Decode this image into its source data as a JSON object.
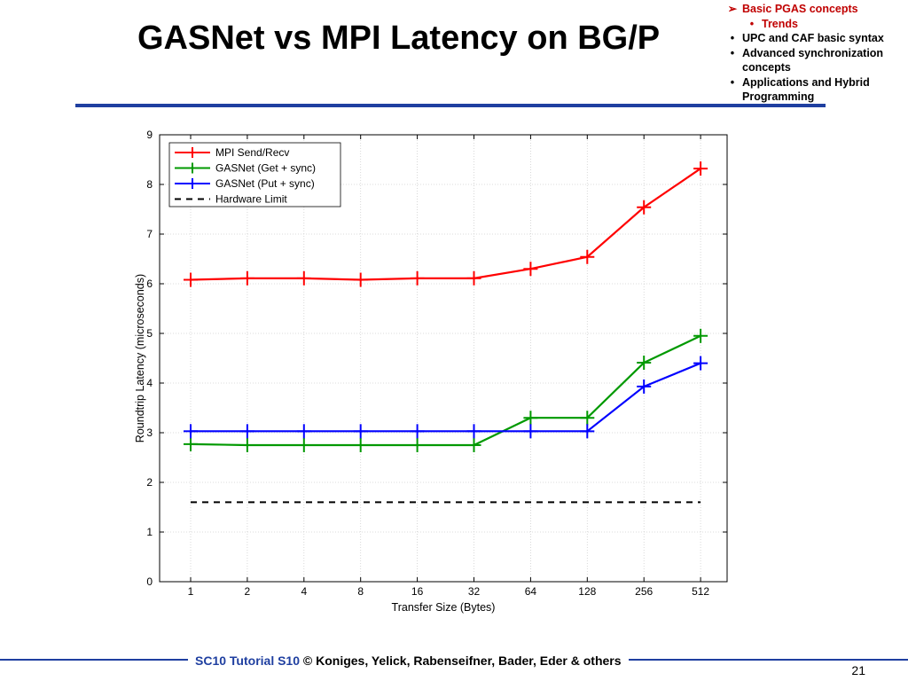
{
  "slide": {
    "title": "GASNet vs MPI Latency on BG/P",
    "page_number": "21"
  },
  "outline": {
    "items": [
      {
        "marker": "➢",
        "label": "Basic PGAS concepts",
        "highlight": true,
        "subitems": [
          {
            "marker": "•",
            "label": "Trends",
            "highlight": true
          }
        ]
      },
      {
        "marker": "•",
        "label": "UPC and CAF basic syntax",
        "highlight": false
      },
      {
        "marker": "•",
        "label": "Advanced synchronization concepts",
        "highlight": false
      },
      {
        "marker": "•",
        "label": "Applications and Hybrid Programming",
        "highlight": false
      }
    ]
  },
  "footer": {
    "tutorial": "SC10 Tutorial S10",
    "authors": "© Koniges, Yelick, Rabenseifner, Bader, Eder & others"
  },
  "colors": {
    "rule": "#1f3fa0",
    "highlight": "#c00000"
  },
  "chart_data": {
    "type": "line",
    "title": "",
    "xlabel": "Transfer Size (Bytes)",
    "ylabel": "Roundtrip Latency (microseconds)",
    "categories": [
      "1",
      "2",
      "4",
      "8",
      "16",
      "32",
      "64",
      "128",
      "256",
      "512"
    ],
    "ylim": [
      0,
      9
    ],
    "yticks": [
      "0",
      "1",
      "2",
      "3",
      "4",
      "5",
      "6",
      "7",
      "8",
      "9"
    ],
    "grid": true,
    "legend_position": "top-left",
    "series": [
      {
        "name": "MPI Send/Recv",
        "color": "#ff0000",
        "style": "solid",
        "marker": "plus",
        "values": [
          6.08,
          6.11,
          6.11,
          6.08,
          6.11,
          6.11,
          6.3,
          6.54,
          7.54,
          8.32
        ]
      },
      {
        "name": "GASNet (Get + sync)",
        "color": "#009900",
        "style": "solid",
        "marker": "plus",
        "values": [
          2.77,
          2.75,
          2.75,
          2.75,
          2.75,
          2.75,
          3.3,
          3.3,
          4.41,
          4.95
        ]
      },
      {
        "name": "GASNet (Put + sync)",
        "color": "#0000ff",
        "style": "solid",
        "marker": "plus",
        "values": [
          3.03,
          3.03,
          3.03,
          3.03,
          3.03,
          3.03,
          3.03,
          3.03,
          3.93,
          4.4
        ]
      },
      {
        "name": "Hardware Limit",
        "color": "#000000",
        "style": "dashed",
        "marker": "none",
        "values": [
          1.6,
          1.6,
          1.6,
          1.6,
          1.6,
          1.6,
          1.6,
          1.6,
          1.6,
          1.6
        ]
      }
    ]
  }
}
